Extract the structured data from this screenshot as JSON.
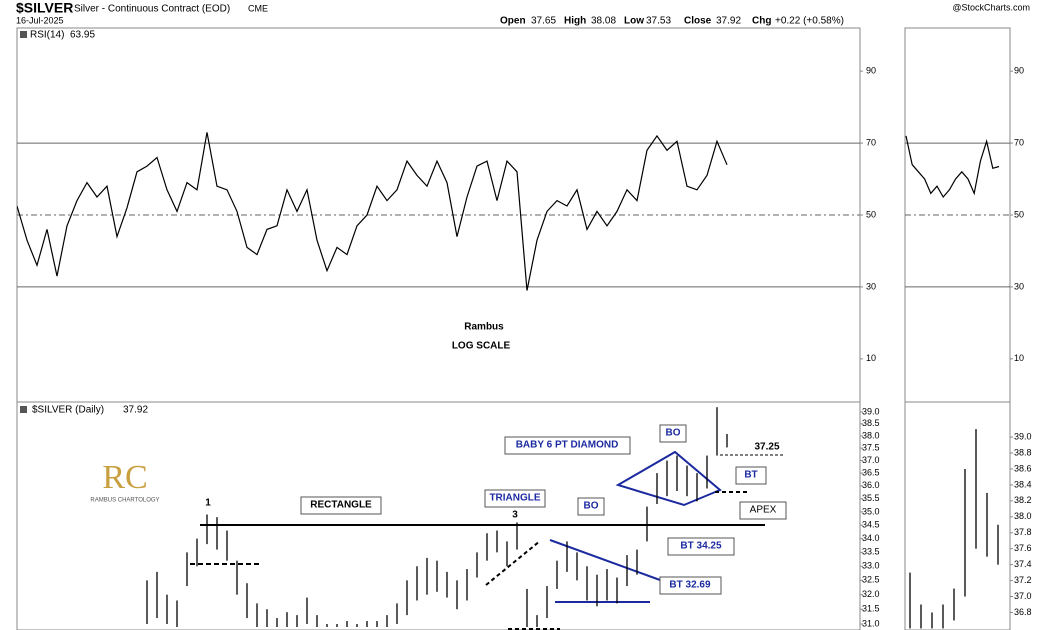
{
  "header": {
    "symbol": "$SILVER",
    "name": "Silver - Continuous Contract (EOD)",
    "exchange": "CME",
    "date": "16-Jul-2025",
    "source": "@StockCharts.com",
    "open_label": "Open",
    "open": 37.65,
    "high_label": "High",
    "high": 38.08,
    "low_label": "Low",
    "low": 37.53,
    "close_label": "Close",
    "close": 37.92,
    "chg_label": "Chg",
    "chg": "+0.22 (+0.58%)"
  },
  "logo": {
    "mark": "RC",
    "text": "RAMBUS CHARTOLOGY"
  },
  "chart_data": [
    {
      "type": "line",
      "legend": "RSI(14)",
      "last": 63.95,
      "color": "#000000",
      "ylim": [
        -2,
        102
      ],
      "yticks": [
        10,
        30,
        50,
        70,
        90
      ],
      "reference_lines": [
        {
          "value": 70,
          "style": "solid"
        },
        {
          "value": 50,
          "style": "dashdot"
        },
        {
          "value": 30,
          "style": "solid"
        }
      ],
      "annotations": [
        "Rambus",
        "LOG SCALE"
      ],
      "values": [
        52.5,
        43,
        36,
        46,
        33,
        47,
        54,
        59,
        55,
        58,
        44,
        52,
        62,
        63.6,
        66,
        57,
        51,
        59,
        57,
        73,
        58,
        57,
        51,
        41,
        39,
        46,
        47,
        57,
        51,
        57,
        43,
        34.5,
        41,
        39,
        47,
        50,
        58,
        54,
        57,
        65,
        61,
        58,
        65,
        59,
        44,
        55,
        63.6,
        65,
        54,
        65,
        62,
        29,
        43,
        51,
        54,
        52.5,
        57,
        46,
        51,
        47,
        51,
        57,
        54,
        68,
        72,
        68,
        70.5,
        58,
        57,
        61,
        70.5,
        63.95
      ]
    },
    {
      "type": "hl",
      "legend": "$SILVER (Daily)",
      "last": 37.92,
      "color": "#000000",
      "log_scale": true,
      "ylim": [
        30.8,
        39.42
      ],
      "yticks": [
        {
          "value": 31.0,
          "label": "31.0"
        },
        {
          "value": 31.5,
          "label": "31.5"
        },
        {
          "value": 32.0,
          "label": "32.0"
        },
        {
          "value": 32.5,
          "label": "32.5"
        },
        {
          "value": 33.0,
          "label": "33.0"
        },
        {
          "value": 33.5,
          "label": "33.5"
        },
        {
          "value": 34.0,
          "label": "34.0"
        },
        {
          "value": 34.5,
          "label": "34.5"
        },
        {
          "value": 35.0,
          "label": "35.0"
        },
        {
          "value": 35.5,
          "label": "35.5"
        },
        {
          "value": 36.0,
          "label": "36.0"
        },
        {
          "value": 36.5,
          "label": "36.5"
        },
        {
          "value": 37.0,
          "label": "37.0"
        },
        {
          "value": 37.5,
          "label": "37.5"
        },
        {
          "value": 38.0,
          "label": "38.0"
        },
        {
          "value": 38.5,
          "label": "38.5"
        },
        {
          "value": 39.0,
          "label": "39.0"
        }
      ],
      "annotations": [
        "1",
        "RECTANGLE",
        "TRIANGLE",
        "3",
        "BO",
        "BT 32.69",
        "BT 34.25",
        "BABY 6 PT DIAMOND",
        "BO",
        "37.25",
        "BT",
        "APEX"
      ],
      "high": [
        null,
        null,
        null,
        null,
        null,
        null,
        null,
        null,
        null,
        null,
        null,
        null,
        null,
        32.5,
        32.8,
        32.0,
        31.8,
        33.5,
        34.0,
        34.9,
        34.8,
        34.3,
        33.2,
        32.4,
        31.7,
        31.5,
        31.2,
        31.4,
        31.3,
        31.9,
        31.3,
        31.0,
        31.0,
        31.1,
        31.0,
        31.1,
        31.1,
        31.3,
        31.7,
        32.5,
        33.0,
        33.3,
        33.2,
        32.8,
        32.5,
        32.9,
        33.5,
        34.2,
        34.3,
        33.9,
        34.6,
        32.2,
        31.3,
        32.3,
        33.2,
        33.9,
        33.5,
        33.0,
        32.7,
        32.9,
        32.6,
        33.4,
        33.6,
        35.2,
        36.5,
        37.0,
        37.2,
        36.8,
        36.5,
        37.2,
        39.2,
        38.08
      ],
      "low": [
        null,
        null,
        null,
        null,
        null,
        null,
        null,
        null,
        null,
        null,
        null,
        null,
        null,
        31.0,
        31.2,
        31.0,
        30.9,
        32.3,
        33.0,
        33.8,
        33.6,
        33.2,
        32.0,
        31.2,
        30.9,
        30.9,
        30.9,
        30.9,
        30.9,
        31.0,
        30.9,
        30.9,
        30.9,
        30.9,
        30.9,
        30.9,
        30.9,
        30.9,
        31.0,
        31.3,
        31.8,
        32.0,
        32.1,
        31.9,
        31.5,
        31.8,
        32.6,
        33.2,
        33.5,
        33.0,
        33.6,
        30.9,
        30.9,
        31.2,
        32.2,
        32.8,
        32.5,
        31.8,
        31.6,
        31.8,
        31.7,
        32.3,
        32.7,
        33.9,
        35.3,
        35.6,
        35.8,
        35.6,
        35.4,
        35.9,
        37.2,
        37.53
      ]
    },
    {
      "type": "line",
      "color": "#000000",
      "ylim": [
        -2,
        102
      ],
      "yticks": [
        10,
        30,
        50,
        70,
        90
      ],
      "reference_lines": [
        {
          "value": 70,
          "style": "solid"
        },
        {
          "value": 50,
          "style": "dashdot"
        },
        {
          "value": 30,
          "style": "solid"
        }
      ],
      "values": [
        72,
        64,
        62,
        60,
        56,
        58,
        55,
        57,
        60,
        62,
        60,
        56,
        65,
        70.5,
        63,
        63.5
      ]
    },
    {
      "type": "hl",
      "color": "#000000",
      "ylim": [
        36.58,
        39.44
      ],
      "yticks": [
        {
          "value": 36.8,
          "label": "36.8"
        },
        {
          "value": 37.0,
          "label": "37.0"
        },
        {
          "value": 37.2,
          "label": "37.2"
        },
        {
          "value": 37.4,
          "label": "37.4"
        },
        {
          "value": 37.6,
          "label": "37.6"
        },
        {
          "value": 37.8,
          "label": "37.8"
        },
        {
          "value": 38.0,
          "label": "38.0"
        },
        {
          "value": 38.2,
          "label": "38.2"
        },
        {
          "value": 38.4,
          "label": "38.4"
        },
        {
          "value": 38.6,
          "label": "38.6"
        },
        {
          "value": 38.8,
          "label": "38.8"
        },
        {
          "value": 39.0,
          "label": "39.0"
        }
      ],
      "high": [
        37.3,
        36.9,
        36.8,
        36.9,
        37.1,
        38.6,
        39.1,
        38.3,
        37.9
      ],
      "low": [
        36.6,
        36.6,
        36.6,
        36.6,
        36.7,
        37.0,
        37.6,
        37.5,
        37.4
      ]
    }
  ]
}
